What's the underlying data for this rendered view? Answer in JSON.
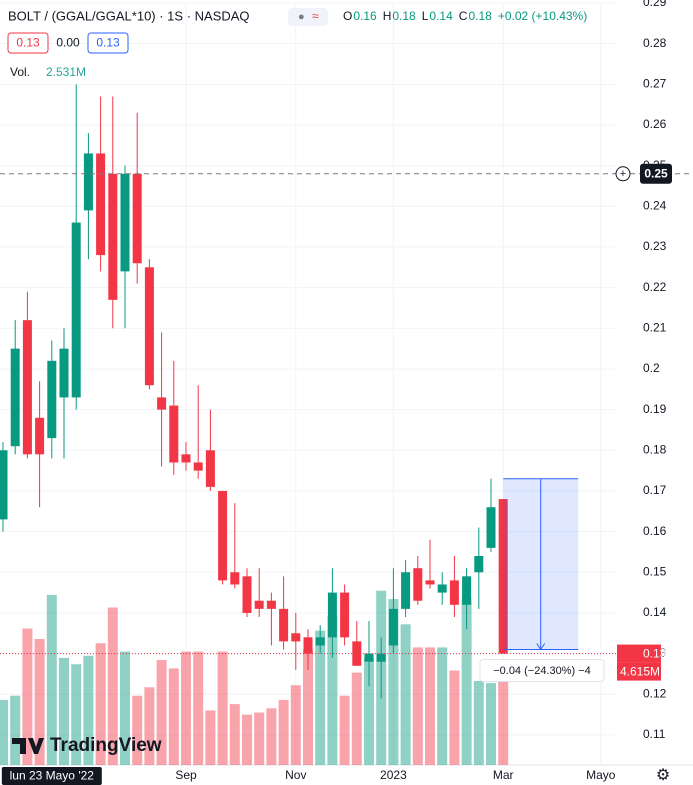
{
  "chart_data": {
    "type": "candlestick",
    "title": "BOLT / (GGAL/GGAL*10) · 1S · NASDAQ",
    "ohlc": [
      {
        "label": "O",
        "value": 0.16
      },
      {
        "label": "H",
        "value": 0.18
      },
      {
        "label": "L",
        "value": 0.14
      },
      {
        "label": "C",
        "value": 0.18
      }
    ],
    "change": "+0.02 (+10.43%)",
    "price_boxes": [
      "0.13",
      "0.00",
      "0.13"
    ],
    "volume_label": "Vol.",
    "volume_value": "2.531M",
    "categories": [
      null,
      null,
      null,
      null,
      null,
      null,
      null,
      null,
      null,
      null,
      null,
      null,
      null,
      null,
      null,
      "Sep",
      null,
      null,
      null,
      null,
      null,
      null,
      null,
      null,
      "Nov",
      null,
      null,
      null,
      null,
      null,
      null,
      null,
      "2023",
      null,
      null,
      null,
      null,
      null,
      null,
      null,
      null,
      "Mar",
      null,
      null,
      null,
      null,
      null,
      null,
      null,
      "Mayo"
    ],
    "open": [
      0.163,
      0.181,
      0.212,
      0.188,
      0.183,
      0.193,
      0.193,
      0.239,
      0.253,
      0.248,
      0.224,
      0.248,
      0.225,
      0.193,
      0.191,
      0.179,
      0.177,
      0.18,
      0.17,
      0.15,
      0.149,
      0.143,
      0.143,
      0.141,
      0.135,
      0.134,
      0.132,
      0.134,
      0.145,
      0.133,
      0.128,
      0.128,
      0.132,
      0.141,
      0.151,
      0.148,
      0.145,
      0.148,
      0.142,
      0.15,
      0.156,
      0.168,
      null,
      null,
      null,
      null,
      null,
      null,
      null,
      null
    ],
    "high": [
      0.182,
      0.212,
      0.219,
      0.197,
      0.207,
      0.21,
      0.27,
      0.258,
      0.267,
      0.267,
      0.25,
      0.263,
      0.227,
      0.209,
      0.202,
      0.182,
      0.196,
      0.19,
      0.17,
      0.167,
      0.151,
      0.151,
      0.145,
      0.149,
      0.14,
      0.136,
      0.137,
      0.151,
      0.147,
      0.138,
      0.138,
      0.134,
      0.151,
      0.153,
      0.154,
      0.158,
      0.15,
      0.154,
      0.151,
      0.161,
      0.173,
      0.168,
      null,
      null,
      null,
      null,
      null,
      null,
      null,
      null
    ],
    "low": [
      0.16,
      0.179,
      0.178,
      0.166,
      0.178,
      0.178,
      0.19,
      0.227,
      0.224,
      0.21,
      0.21,
      0.221,
      0.195,
      0.176,
      0.174,
      0.175,
      0.173,
      0.17,
      0.147,
      0.146,
      0.139,
      0.139,
      0.132,
      0.131,
      0.126,
      0.126,
      0.13,
      0.129,
      0.132,
      0.127,
      0.122,
      0.119,
      0.13,
      0.139,
      0.142,
      0.146,
      0.142,
      0.139,
      0.136,
      0.141,
      0.155,
      0.13,
      null,
      null,
      null,
      null,
      null,
      null,
      null,
      null
    ],
    "close": [
      0.18,
      0.205,
      0.179,
      0.179,
      0.202,
      0.205,
      0.236,
      0.253,
      0.228,
      0.217,
      0.248,
      0.226,
      0.196,
      0.19,
      0.177,
      0.177,
      0.175,
      0.171,
      0.148,
      0.147,
      0.14,
      0.141,
      0.141,
      0.133,
      0.133,
      0.13,
      0.134,
      0.145,
      0.134,
      0.127,
      0.13,
      0.13,
      0.141,
      0.15,
      0.143,
      0.147,
      0.147,
      0.142,
      0.149,
      0.154,
      0.166,
      0.13,
      null,
      null,
      null,
      null,
      null,
      null,
      null,
      null
    ],
    "volume": [
      3.1,
      3.3,
      6.5,
      6.0,
      8.1,
      5.1,
      4.8,
      5.2,
      5.8,
      7.5,
      5.4,
      3.3,
      3.7,
      5.0,
      4.6,
      5.4,
      5.4,
      2.6,
      5.4,
      2.9,
      2.4,
      2.5,
      2.7,
      3.1,
      3.8,
      5.5,
      6.4,
      7.1,
      3.3,
      4.4,
      5.1,
      8.3,
      7.9,
      6.7,
      5.6,
      5.6,
      5.6,
      4.5,
      7.9,
      4.0,
      3.9,
      4.615,
      null,
      null,
      null,
      null,
      null,
      null,
      null,
      null
    ],
    "up_color": "#089981",
    "down_color": "#f23645",
    "ylim": [
      0.1026,
      0.29
    ],
    "yticks": [
      0.11,
      0.12,
      0.13,
      0.14,
      0.15,
      0.16,
      0.17,
      0.18,
      0.19,
      0.2,
      0.21,
      0.22,
      0.23,
      0.24,
      0.25,
      0.26,
      0.27,
      0.28,
      0.29
    ],
    "volume_lim": [
      0,
      12
    ],
    "grid": true,
    "crosshair_date": "lun 23 Mayo '22",
    "crosshair_price": {
      "value": 0.248,
      "label": "0.25"
    },
    "last_price": 0.13,
    "last_volume": {
      "value": 4.615,
      "label": "4.615M"
    },
    "measure": {
      "from": 0.173,
      "to": 0.131,
      "label": "−0.04 (−24.30%) −4"
    },
    "watermark": "TradingView"
  }
}
